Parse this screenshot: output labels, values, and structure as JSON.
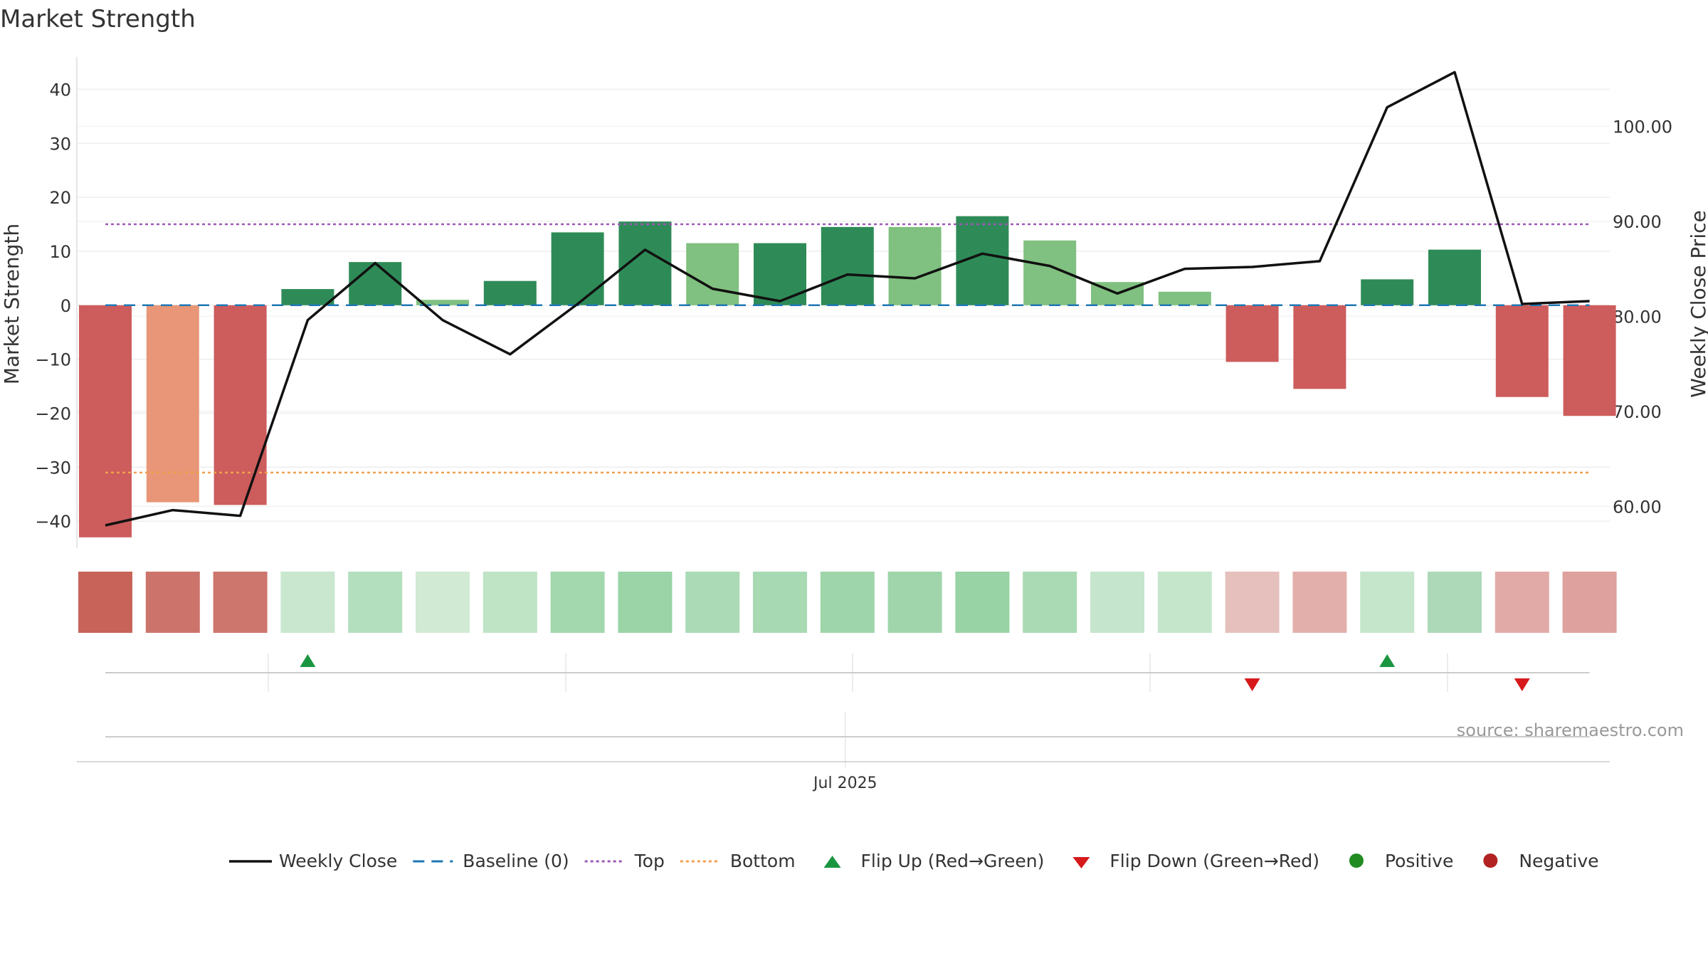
{
  "chart_data": {
    "type": "bar",
    "title": "Market Strength",
    "ylabel": "Market Strength",
    "y2label": "Weekly Close Price",
    "xlabel": "",
    "ylim": [
      -45,
      46
    ],
    "y2lim": [
      55.6,
      107.3
    ],
    "yticks": [
      -40,
      -30,
      -20,
      -10,
      0,
      10,
      20,
      30,
      40
    ],
    "y2ticks": [
      60,
      70,
      80,
      90,
      100
    ],
    "y2tick_labels": [
      "60.00",
      "70.00",
      "80.00",
      "90.00",
      "100.00"
    ],
    "x_tick_label": "Jul 2025",
    "x_tick_index": 11,
    "grid": true,
    "legend_position": "bottom",
    "source_text": "source: sharemaestro.com",
    "top_level": 15,
    "bottom_level": -31,
    "baseline": 0,
    "strength": [
      -43,
      -36.5,
      -37,
      3,
      8,
      1,
      4.5,
      13.5,
      15.5,
      11.5,
      11.5,
      14.5,
      14.5,
      16.5,
      12,
      4.3,
      2.5,
      -10.5,
      -15.5,
      4.8,
      10.3,
      -17,
      -20.5
    ],
    "bar_colors": [
      "#cd5c5c",
      "#e89677",
      "#cd5c5c",
      "#2e8b57",
      "#2e8b57",
      "#80c080",
      "#2e8b57",
      "#2e8b57",
      "#2e8b57",
      "#80c080",
      "#2e8b57",
      "#2e8b57",
      "#80c080",
      "#2e8b57",
      "#80c080",
      "#80c080",
      "#80c080",
      "#cd5c5c",
      "#cd5c5c",
      "#2e8b57",
      "#2e8b57",
      "#cd5c5c",
      "#cd5c5c"
    ],
    "weekly_close": [
      58.0,
      59.6,
      59.0,
      79.6,
      85.6,
      79.6,
      76.0,
      81.3,
      87.0,
      82.9,
      81.6,
      84.4,
      84.0,
      86.6,
      85.3,
      82.4,
      85.0,
      85.2,
      85.8,
      102.0,
      105.7,
      81.3,
      81.6
    ],
    "heat_colors": [
      "#c8635a",
      "#cc746c",
      "#cd766d",
      "#c9e7ce",
      "#b4dfbe",
      "#d0ead4",
      "#bee3c5",
      "#a3d7ae",
      "#9ad4a7",
      "#abdab6",
      "#a7d9b2",
      "#9ed5aa",
      "#a0d5ab",
      "#97d3a4",
      "#a9dab4",
      "#c5e6cc",
      "#c5e6cb",
      "#e5c0bc",
      "#e3afab",
      "#c6e6cc",
      "#add9b8",
      "#e2aaa7",
      "#dfa19e"
    ],
    "flips": [
      {
        "index": 3,
        "direction": "up"
      },
      {
        "index": 17,
        "direction": "down"
      },
      {
        "index": 19,
        "direction": "up"
      },
      {
        "index": 21,
        "direction": "down"
      }
    ],
    "colors": {
      "line": "#111111",
      "baseline": "#1f77b4",
      "top": "#9b59b6",
      "bottom": "#f0a050",
      "flip_up": "#1a9641",
      "flip_down": "#d7191c",
      "positive": "#228b22",
      "negative": "#b22222"
    },
    "legend": [
      {
        "label": "Weekly Close",
        "symbol": "line"
      },
      {
        "label": "Baseline (0)",
        "symbol": "dash"
      },
      {
        "label": "Top",
        "symbol": "dot-purple"
      },
      {
        "label": "Bottom",
        "symbol": "dot-orange"
      },
      {
        "label": "Flip Up (Red→Green)",
        "symbol": "tri-up"
      },
      {
        "label": "Flip Down (Green→Red)",
        "symbol": "tri-down"
      },
      {
        "label": "Positive",
        "symbol": "circle-green"
      },
      {
        "label": "Negative",
        "symbol": "circle-red"
      }
    ]
  }
}
